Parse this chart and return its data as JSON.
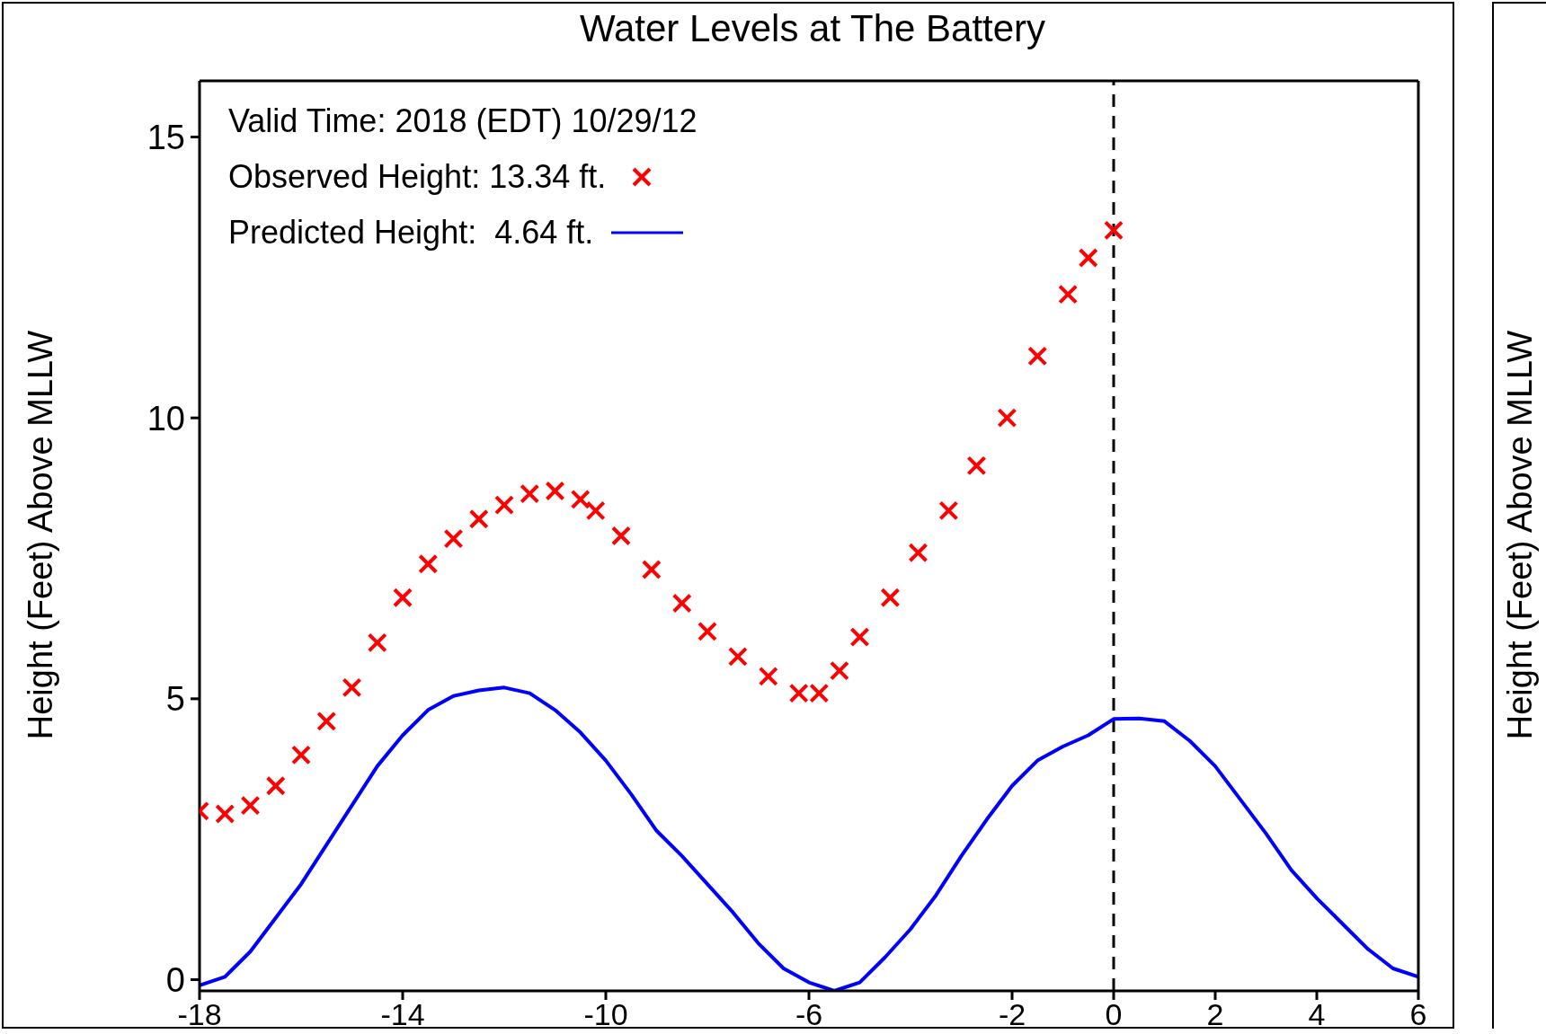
{
  "chart_data": [
    {
      "type": "scatter",
      "title": "Water Levels at The Battery",
      "ylabel": "Height (Feet) Above MLLW",
      "xlim": [
        -18,
        6
      ],
      "xticks": [
        {
          "value": -18,
          "label": "-18"
        },
        {
          "value": -14,
          "label": "-14"
        },
        {
          "value": -10,
          "label": "-10"
        },
        {
          "value": -6,
          "label": "-6"
        },
        {
          "value": -2,
          "label": "-2"
        },
        0,
        2,
        4,
        6
      ],
      "ylim": [
        -0.2,
        16
      ],
      "yticks": [
        0,
        5,
        10,
        15
      ],
      "grid": false,
      "legend": "top left",
      "annotations": [
        "Valid Time: 2018 (EDT) 10/29/12"
      ],
      "ref_lines": [
        {
          "axis": "x",
          "value": 0,
          "line_style": "dashed",
          "color": "#000000"
        }
      ],
      "series": [
        {
          "name": "Observed Height: 13.34 ft.",
          "type": "scatter",
          "marker": "cross",
          "color": "#ff0000",
          "x": [
            -18,
            -17.5,
            -17,
            -16.5,
            -16,
            -15.5,
            -15,
            -14.5,
            -14,
            -13.5,
            -13,
            -12.5,
            -12,
            -11.5,
            -11,
            -10.5,
            -10.2,
            -9.7,
            -9.1,
            -8.5,
            -8,
            -7.4,
            -6.8,
            -6.2,
            -5.8,
            -5.4,
            -5,
            -4.4,
            -3.85,
            -3.25,
            -2.7,
            -2.1,
            -1.5,
            -0.9,
            -0.5,
            0
          ],
          "values": [
            3.0,
            2.95,
            3.1,
            3.45,
            4.0,
            4.6,
            5.2,
            6.0,
            6.8,
            7.4,
            7.85,
            8.2,
            8.45,
            8.65,
            8.7,
            8.55,
            8.35,
            7.9,
            7.3,
            6.7,
            6.2,
            5.75,
            5.4,
            5.1,
            5.1,
            5.5,
            6.1,
            6.8,
            7.6,
            8.35,
            9.15,
            10.0,
            11.1,
            12.2,
            12.85,
            13.34
          ]
        },
        {
          "name": "Predicted Height:  4.64 ft.",
          "type": "line",
          "marker": "none",
          "color": "#0000ff",
          "x": [
            -18,
            -17.5,
            -17,
            -16.5,
            -16,
            -15.5,
            -15,
            -14.5,
            -14,
            -13.5,
            -13,
            -12.5,
            -12,
            -11.5,
            -11,
            -10.5,
            -10,
            -9.5,
            -9,
            -8.5,
            -8,
            -7.5,
            -7,
            -6.5,
            -6,
            -5.5,
            -5,
            -4.5,
            -4,
            -3.5,
            -3,
            -2.5,
            -2,
            -1.5,
            -1,
            -0.5,
            0,
            0.5,
            1,
            1.5,
            2,
            2.5,
            3,
            3.5,
            4,
            4.5,
            5,
            5.5,
            6
          ],
          "values": [
            -0.1,
            0.05,
            0.5,
            1.1,
            1.7,
            2.4,
            3.1,
            3.8,
            4.35,
            4.8,
            5.05,
            5.15,
            5.2,
            5.1,
            4.8,
            4.4,
            3.9,
            3.3,
            2.65,
            2.2,
            1.7,
            1.2,
            0.65,
            0.2,
            -0.05,
            -0.2,
            -0.05,
            0.4,
            0.9,
            1.5,
            2.2,
            2.85,
            3.45,
            3.9,
            4.15,
            4.35,
            4.64,
            4.65,
            4.6,
            4.25,
            3.8,
            3.2,
            2.6,
            1.95,
            1.45,
            1.0,
            0.55,
            0.2,
            0.05
          ]
        }
      ]
    },
    {
      "type": "other",
      "ylabel": "Height (Feet) Above MLLW"
    }
  ]
}
